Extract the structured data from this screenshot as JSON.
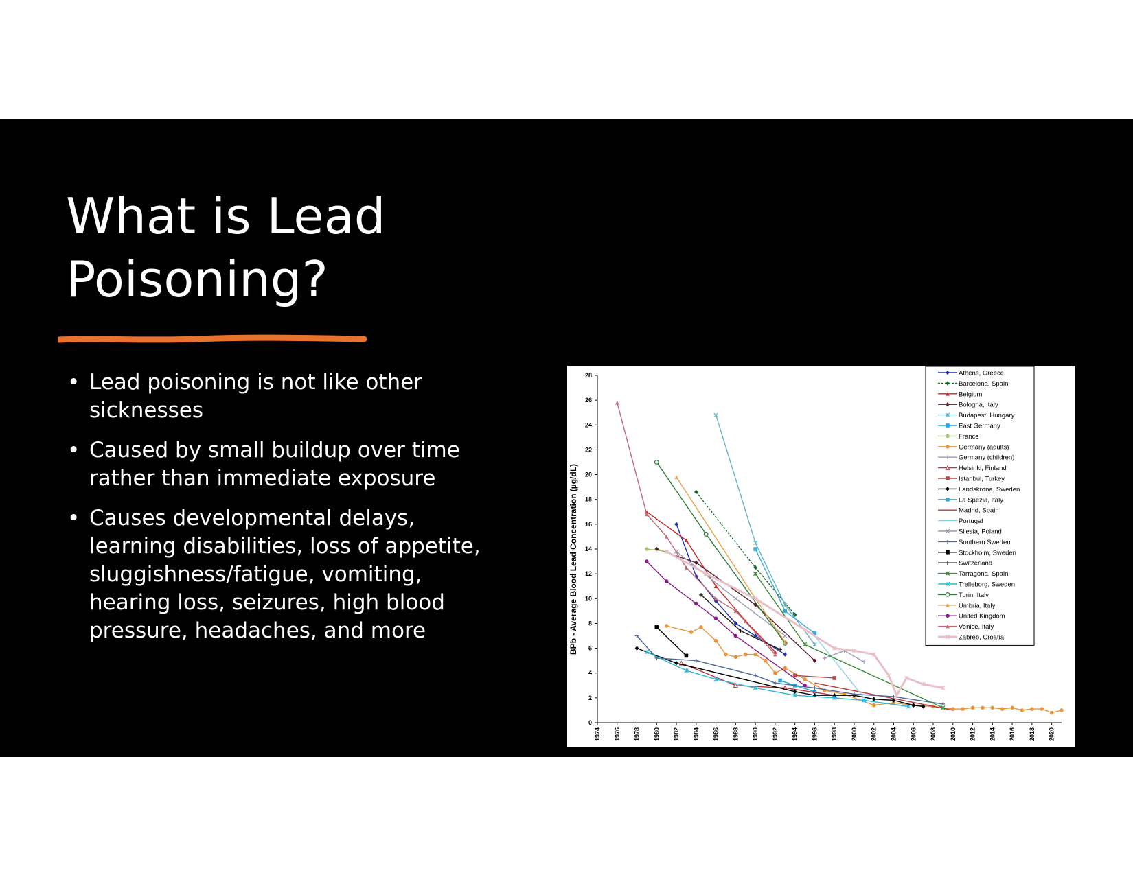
{
  "slide": {
    "title_lines": [
      "What is Lead",
      "Poisoning?"
    ],
    "accent_color": "#e8732e",
    "bullet_glyph": "•",
    "bullets": [
      "Lead poisoning is not like other sicknesses",
      "Caused by small buildup over time rather than immediate exposure",
      "Causes developmental delays, learning disabilities, loss of appetite, sluggishness/fatigue, vomiting, hearing loss, seizures, high blood pressure, headaches,  and more"
    ]
  },
  "chart_data": {
    "type": "line",
    "title": "",
    "xlabel": "",
    "ylabel": "BPb - Average Blood Lead Concentration (µg/dL)",
    "xlim": [
      1974,
      2021
    ],
    "ylim": [
      0,
      28
    ],
    "xticks": [
      1974,
      1976,
      1978,
      1980,
      1982,
      1984,
      1986,
      1988,
      1990,
      1992,
      1994,
      1996,
      1998,
      2000,
      2002,
      2004,
      2006,
      2008,
      2010,
      2012,
      2014,
      2016,
      2018,
      2020
    ],
    "yticks": [
      0,
      2,
      4,
      6,
      8,
      10,
      12,
      14,
      16,
      18,
      20,
      22,
      24,
      26,
      28
    ],
    "grid": false,
    "legend_position": "top-right",
    "series": [
      {
        "name": "Athens, Greece",
        "color": "#1f2fa8",
        "marker": "diamond",
        "points": [
          [
            1982,
            16
          ],
          [
            1984,
            11.8
          ],
          [
            1986,
            9.8
          ],
          [
            1988,
            8
          ],
          [
            1990,
            7
          ],
          [
            1993,
            5.5
          ]
        ]
      },
      {
        "name": "Barcelona, Spain",
        "color": "#1e6b2a",
        "marker": "diamond",
        "dashed": true,
        "points": [
          [
            1984,
            18.6
          ],
          [
            1990,
            12.5
          ],
          [
            1994,
            8.7
          ]
        ]
      },
      {
        "name": "Belgium",
        "color": "#c62828",
        "marker": "triangle",
        "points": [
          [
            1979,
            17
          ],
          [
            1983,
            14.7
          ],
          [
            1986,
            11
          ],
          [
            1989,
            8.2
          ],
          [
            1992,
            5.7
          ]
        ]
      },
      {
        "name": "Bologna, Italy",
        "color": "#5a1a2a",
        "marker": "diamond",
        "points": [
          [
            1980,
            14
          ],
          [
            1984,
            12.9
          ],
          [
            1990,
            9.5
          ],
          [
            1996,
            5
          ]
        ]
      },
      {
        "name": "Budapest, Hungary",
        "color": "#6ab4c4",
        "marker": "star",
        "points": [
          [
            1986,
            24.8
          ],
          [
            1990,
            14.5
          ],
          [
            1993,
            9.5
          ],
          [
            1996,
            6.3
          ]
        ]
      },
      {
        "name": "East Germany",
        "color": "#29a8e0",
        "marker": "square",
        "points": [
          [
            1992.5,
            3.4
          ],
          [
            1994,
            3
          ],
          [
            1996,
            2.5
          ]
        ]
      },
      {
        "name": "France",
        "color": "#a6c86a",
        "marker": "circle",
        "points": [
          [
            1979,
            14
          ],
          [
            1981,
            13.8
          ],
          [
            1985,
            12
          ]
        ]
      },
      {
        "name": "Germany (adults)",
        "color": "#e8953a",
        "marker": "circle",
        "points": [
          [
            1981,
            7.8
          ],
          [
            1983.5,
            7.3
          ],
          [
            1984.5,
            7.7
          ],
          [
            1986,
            6.6
          ],
          [
            1987,
            5.5
          ],
          [
            1988,
            5.3
          ],
          [
            1989,
            5.5
          ],
          [
            1990,
            5.5
          ],
          [
            1991,
            5
          ],
          [
            1992,
            4
          ],
          [
            1993,
            4.4
          ],
          [
            1995,
            3.5
          ],
          [
            1997,
            2.6
          ],
          [
            1999,
            2.3
          ],
          [
            2002,
            1.4
          ],
          [
            2004,
            1.6
          ],
          [
            2006,
            1.4
          ],
          [
            2008,
            1.3
          ],
          [
            2010,
            1.1
          ],
          [
            2011,
            1.1
          ],
          [
            2012,
            1.2
          ],
          [
            2013,
            1.2
          ],
          [
            2014,
            1.2
          ],
          [
            2015,
            1.1
          ],
          [
            2016,
            1.2
          ],
          [
            2017,
            1
          ],
          [
            2018,
            1.1
          ],
          [
            2019,
            1.1
          ],
          [
            2020,
            0.8
          ],
          [
            2021,
            1
          ]
        ]
      },
      {
        "name": "Germany (children)",
        "color": "#9a9ab8",
        "marker": "plus",
        "points": [
          [
            1997,
            5.2
          ],
          [
            1999,
            5.8
          ],
          [
            2001,
            4.9
          ]
        ]
      },
      {
        "name": "Helsinki, Finland",
        "color": "#c0303a",
        "marker": "triangle-open",
        "points": [
          [
            1982.5,
            4.8
          ],
          [
            1988,
            3
          ],
          [
            1993,
            2.8
          ],
          [
            1998,
            2.2
          ]
        ]
      },
      {
        "name": "Istanbul, Turkey",
        "color": "#b24848",
        "marker": "square",
        "points": [
          [
            1994,
            3.8
          ],
          [
            1998,
            3.6
          ]
        ]
      },
      {
        "name": "Landskrona, Sweden",
        "color": "#000000",
        "marker": "diamond",
        "points": [
          [
            1978,
            6
          ],
          [
            1982,
            4.8
          ],
          [
            1994,
            2.5
          ],
          [
            1996,
            2.2
          ],
          [
            1998,
            2.2
          ],
          [
            2000,
            2.2
          ],
          [
            2002,
            1.9
          ],
          [
            2004,
            1.8
          ],
          [
            2006,
            1.4
          ],
          [
            2007,
            1.3
          ]
        ]
      },
      {
        "name": "La Spezia, Italy",
        "color": "#3aa8d8",
        "marker": "square",
        "points": [
          [
            1990,
            14
          ],
          [
            1993,
            9
          ],
          [
            1996,
            7.2
          ]
        ]
      },
      {
        "name": "Madrid, Spain",
        "color": "#b83a3a",
        "marker": "none",
        "points": [
          [
            1996,
            3.2
          ],
          [
            2010,
            1
          ]
        ]
      },
      {
        "name": "Portugal",
        "color": "#8fd0e8",
        "marker": "none",
        "points": [
          [
            1996,
            7
          ],
          [
            1999,
            4
          ],
          [
            2001,
            2
          ]
        ]
      },
      {
        "name": "Silesia, Poland",
        "color": "#9a9ab0",
        "marker": "cross",
        "points": [
          [
            1982,
            13.8
          ],
          [
            1988,
            10
          ],
          [
            1993,
            7
          ]
        ]
      },
      {
        "name": "Southern Sweden",
        "color": "#4a6a9a",
        "marker": "plus",
        "points": [
          [
            1978,
            7
          ],
          [
            1980,
            5.2
          ],
          [
            1984,
            5
          ],
          [
            1990,
            3.8
          ],
          [
            1992,
            3.2
          ],
          [
            1996,
            2.8
          ],
          [
            2000,
            2.3
          ],
          [
            2004,
            2.1
          ],
          [
            2009,
            1.5
          ]
        ]
      },
      {
        "name": "Stockholm, Sweden",
        "color": "#000000",
        "marker": "square",
        "points": [
          [
            1980,
            7.7
          ],
          [
            1983,
            5.4
          ]
        ]
      },
      {
        "name": "Switzerland",
        "color": "#1a1a1a",
        "marker": "plus",
        "points": [
          [
            1984.5,
            10.3
          ],
          [
            1988.5,
            7.4
          ],
          [
            1992.5,
            5.9
          ]
        ]
      },
      {
        "name": "Tarragona, Spain",
        "color": "#3a8a3a",
        "marker": "star",
        "points": [
          [
            1990,
            12
          ],
          [
            1995,
            6.3
          ],
          [
            2009,
            1.2
          ]
        ]
      },
      {
        "name": "Trelleborg, Sweden",
        "color": "#29b8d8",
        "marker": "star",
        "points": [
          [
            1979,
            5.7
          ],
          [
            1983,
            4.2
          ],
          [
            1986,
            3.5
          ],
          [
            1990,
            2.8
          ],
          [
            1994,
            2.2
          ],
          [
            1998,
            2
          ],
          [
            2001,
            1.8
          ],
          [
            2005.5,
            1.3
          ]
        ]
      },
      {
        "name": "Turin, Italy",
        "color": "#2a7a3a",
        "marker": "circle-open",
        "points": [
          [
            1980,
            21
          ],
          [
            1985,
            15.2
          ],
          [
            1993,
            6.4
          ]
        ]
      },
      {
        "name": "Umbria, Italy",
        "color": "#e8a04a",
        "marker": "triangle",
        "points": [
          [
            1982,
            19.8
          ],
          [
            1990,
            10
          ],
          [
            1993,
            6.5
          ]
        ]
      },
      {
        "name": "United Kingdom",
        "color": "#8a1a8a",
        "marker": "circle",
        "points": [
          [
            1979,
            13
          ],
          [
            1981,
            11.4
          ],
          [
            1984,
            9.6
          ],
          [
            1986,
            8.4
          ],
          [
            1988,
            7
          ],
          [
            1995,
            3
          ]
        ]
      },
      {
        "name": "Venice, Italy",
        "color": "#c06a7a",
        "marker": "triangle",
        "points": [
          [
            1976,
            25.8
          ],
          [
            1979,
            16.8
          ],
          [
            1981,
            15
          ],
          [
            1983,
            12.5
          ],
          [
            1986,
            10
          ],
          [
            1988,
            9
          ],
          [
            1992,
            5.5
          ]
        ]
      },
      {
        "name": "Zabreb, Croatia",
        "color": "#e8c0c8",
        "marker": "star",
        "points": [
          [
            1981,
            13.8
          ],
          [
            1985,
            12
          ],
          [
            1990,
            10
          ],
          [
            1995,
            7.5
          ],
          [
            1998,
            6
          ],
          [
            2000,
            5.8
          ],
          [
            2002,
            5.5
          ],
          [
            2003.5,
            3.8
          ],
          [
            2004.3,
            2.2
          ],
          [
            2005.3,
            3.6
          ],
          [
            2007,
            3.1
          ],
          [
            2009,
            2.8
          ]
        ]
      }
    ]
  }
}
